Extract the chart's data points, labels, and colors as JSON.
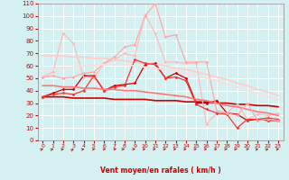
{
  "xlabel": "Vent moyen/en rafales ( km/h )",
  "background_color": "#d4f0f0",
  "grid_color": "#ffffff",
  "xlim": [
    -0.5,
    23.5
  ],
  "ylim": [
    0,
    110
  ],
  "yticks": [
    0,
    10,
    20,
    30,
    40,
    50,
    60,
    70,
    80,
    90,
    100,
    110
  ],
  "xticks": [
    0,
    1,
    2,
    3,
    4,
    5,
    6,
    7,
    8,
    9,
    10,
    11,
    12,
    13,
    14,
    15,
    16,
    17,
    18,
    19,
    20,
    21,
    22,
    23
  ],
  "series": [
    {
      "x": [
        0,
        1,
        2,
        3,
        4,
        5,
        6,
        7,
        8,
        9,
        10,
        11,
        12,
        13,
        14,
        15,
        16,
        17,
        18,
        19,
        20,
        21,
        22,
        23
      ],
      "y": [
        35,
        38,
        41,
        41,
        52,
        52,
        40,
        44,
        45,
        46,
        61,
        62,
        50,
        54,
        50,
        30,
        30,
        32,
        22,
        21,
        16,
        17,
        16,
        16
      ],
      "color": "#cc0000",
      "alpha": 1.0,
      "lw": 0.9,
      "marker": "D",
      "ms": 1.8
    },
    {
      "x": [
        0,
        1,
        2,
        3,
        4,
        5,
        6,
        7,
        8,
        9,
        10,
        11,
        12,
        13,
        14,
        15,
        16,
        17,
        18,
        19,
        20,
        21,
        22,
        23
      ],
      "y": [
        35,
        35,
        35,
        34,
        34,
        34,
        34,
        33,
        33,
        33,
        33,
        32,
        32,
        32,
        31,
        31,
        31,
        30,
        30,
        29,
        29,
        28,
        28,
        27
      ],
      "color": "#cc0000",
      "alpha": 1.0,
      "lw": 1.2,
      "marker": null,
      "ms": 0
    },
    {
      "x": [
        0,
        1,
        2,
        3,
        4,
        5,
        6,
        7,
        8,
        9,
        10,
        11,
        12,
        13,
        14,
        15,
        16,
        17,
        18,
        19,
        20,
        21,
        22,
        23
      ],
      "y": [
        51,
        55,
        86,
        78,
        51,
        50,
        62,
        65,
        70,
        68,
        101,
        86,
        63,
        63,
        62,
        62,
        13,
        22,
        22,
        29,
        17,
        21,
        20,
        22
      ],
      "color": "#ffbbbb",
      "alpha": 1.0,
      "lw": 0.9,
      "marker": "D",
      "ms": 1.8
    },
    {
      "x": [
        0,
        1,
        2,
        3,
        4,
        5,
        6,
        7,
        8,
        9,
        10,
        11,
        12,
        13,
        14,
        15,
        16,
        17,
        18,
        19,
        20,
        21,
        22,
        23
      ],
      "y": [
        68,
        68,
        68,
        67,
        67,
        66,
        66,
        65,
        64,
        63,
        62,
        61,
        60,
        58,
        57,
        55,
        53,
        51,
        49,
        46,
        44,
        41,
        39,
        36
      ],
      "color": "#ffcccc",
      "alpha": 1.0,
      "lw": 1.2,
      "marker": null,
      "ms": 0
    },
    {
      "x": [
        0,
        1,
        2,
        3,
        4,
        5,
        6,
        7,
        8,
        9,
        10,
        11,
        12,
        13,
        14,
        15,
        16,
        17,
        18,
        19,
        20,
        21,
        22,
        23
      ],
      "y": [
        35,
        37,
        38,
        37,
        40,
        52,
        40,
        43,
        44,
        65,
        62,
        61,
        50,
        51,
        48,
        29,
        25,
        22,
        21,
        10,
        17,
        17,
        18,
        17
      ],
      "color": "#ff3333",
      "alpha": 1.0,
      "lw": 0.9,
      "marker": "D",
      "ms": 1.8
    },
    {
      "x": [
        0,
        1,
        2,
        3,
        4,
        5,
        6,
        7,
        8,
        9,
        10,
        11,
        12,
        13,
        14,
        15,
        16,
        17,
        18,
        19,
        20,
        21,
        22,
        23
      ],
      "y": [
        44,
        44,
        43,
        43,
        42,
        42,
        41,
        41,
        40,
        40,
        39,
        38,
        37,
        36,
        35,
        33,
        32,
        30,
        28,
        27,
        25,
        23,
        22,
        20
      ],
      "color": "#ff7777",
      "alpha": 1.0,
      "lw": 1.2,
      "marker": null,
      "ms": 0
    },
    {
      "x": [
        0,
        1,
        2,
        3,
        4,
        5,
        6,
        7,
        8,
        9,
        10,
        11,
        12,
        13,
        14,
        15,
        16,
        17,
        18,
        19,
        20,
        21,
        22,
        23
      ],
      "y": [
        51,
        52,
        50,
        51,
        54,
        55,
        62,
        67,
        75,
        77,
        100,
        110,
        83,
        85,
        63,
        63,
        63,
        24,
        22,
        20,
        30,
        16,
        17,
        16
      ],
      "color": "#ffaaaa",
      "alpha": 1.0,
      "lw": 0.9,
      "marker": "D",
      "ms": 1.8
    },
    {
      "x": [
        0,
        1,
        2,
        3,
        4,
        5,
        6,
        7,
        8,
        9,
        10,
        11,
        12,
        13,
        14,
        15,
        16,
        17,
        18,
        19,
        20,
        21,
        22,
        23
      ],
      "y": [
        56,
        57,
        58,
        59,
        60,
        60,
        61,
        61,
        61,
        60,
        59,
        58,
        57,
        56,
        54,
        52,
        50,
        48,
        45,
        43,
        40,
        38,
        35,
        33
      ],
      "color": "#ffdddd",
      "alpha": 1.0,
      "lw": 1.2,
      "marker": null,
      "ms": 0
    }
  ],
  "wind_directions_deg": [
    80,
    80,
    75,
    85,
    75,
    65,
    55,
    45,
    35,
    20,
    10,
    5,
    3,
    3,
    3,
    3,
    5,
    10,
    20,
    35,
    55,
    75,
    80,
    70
  ]
}
